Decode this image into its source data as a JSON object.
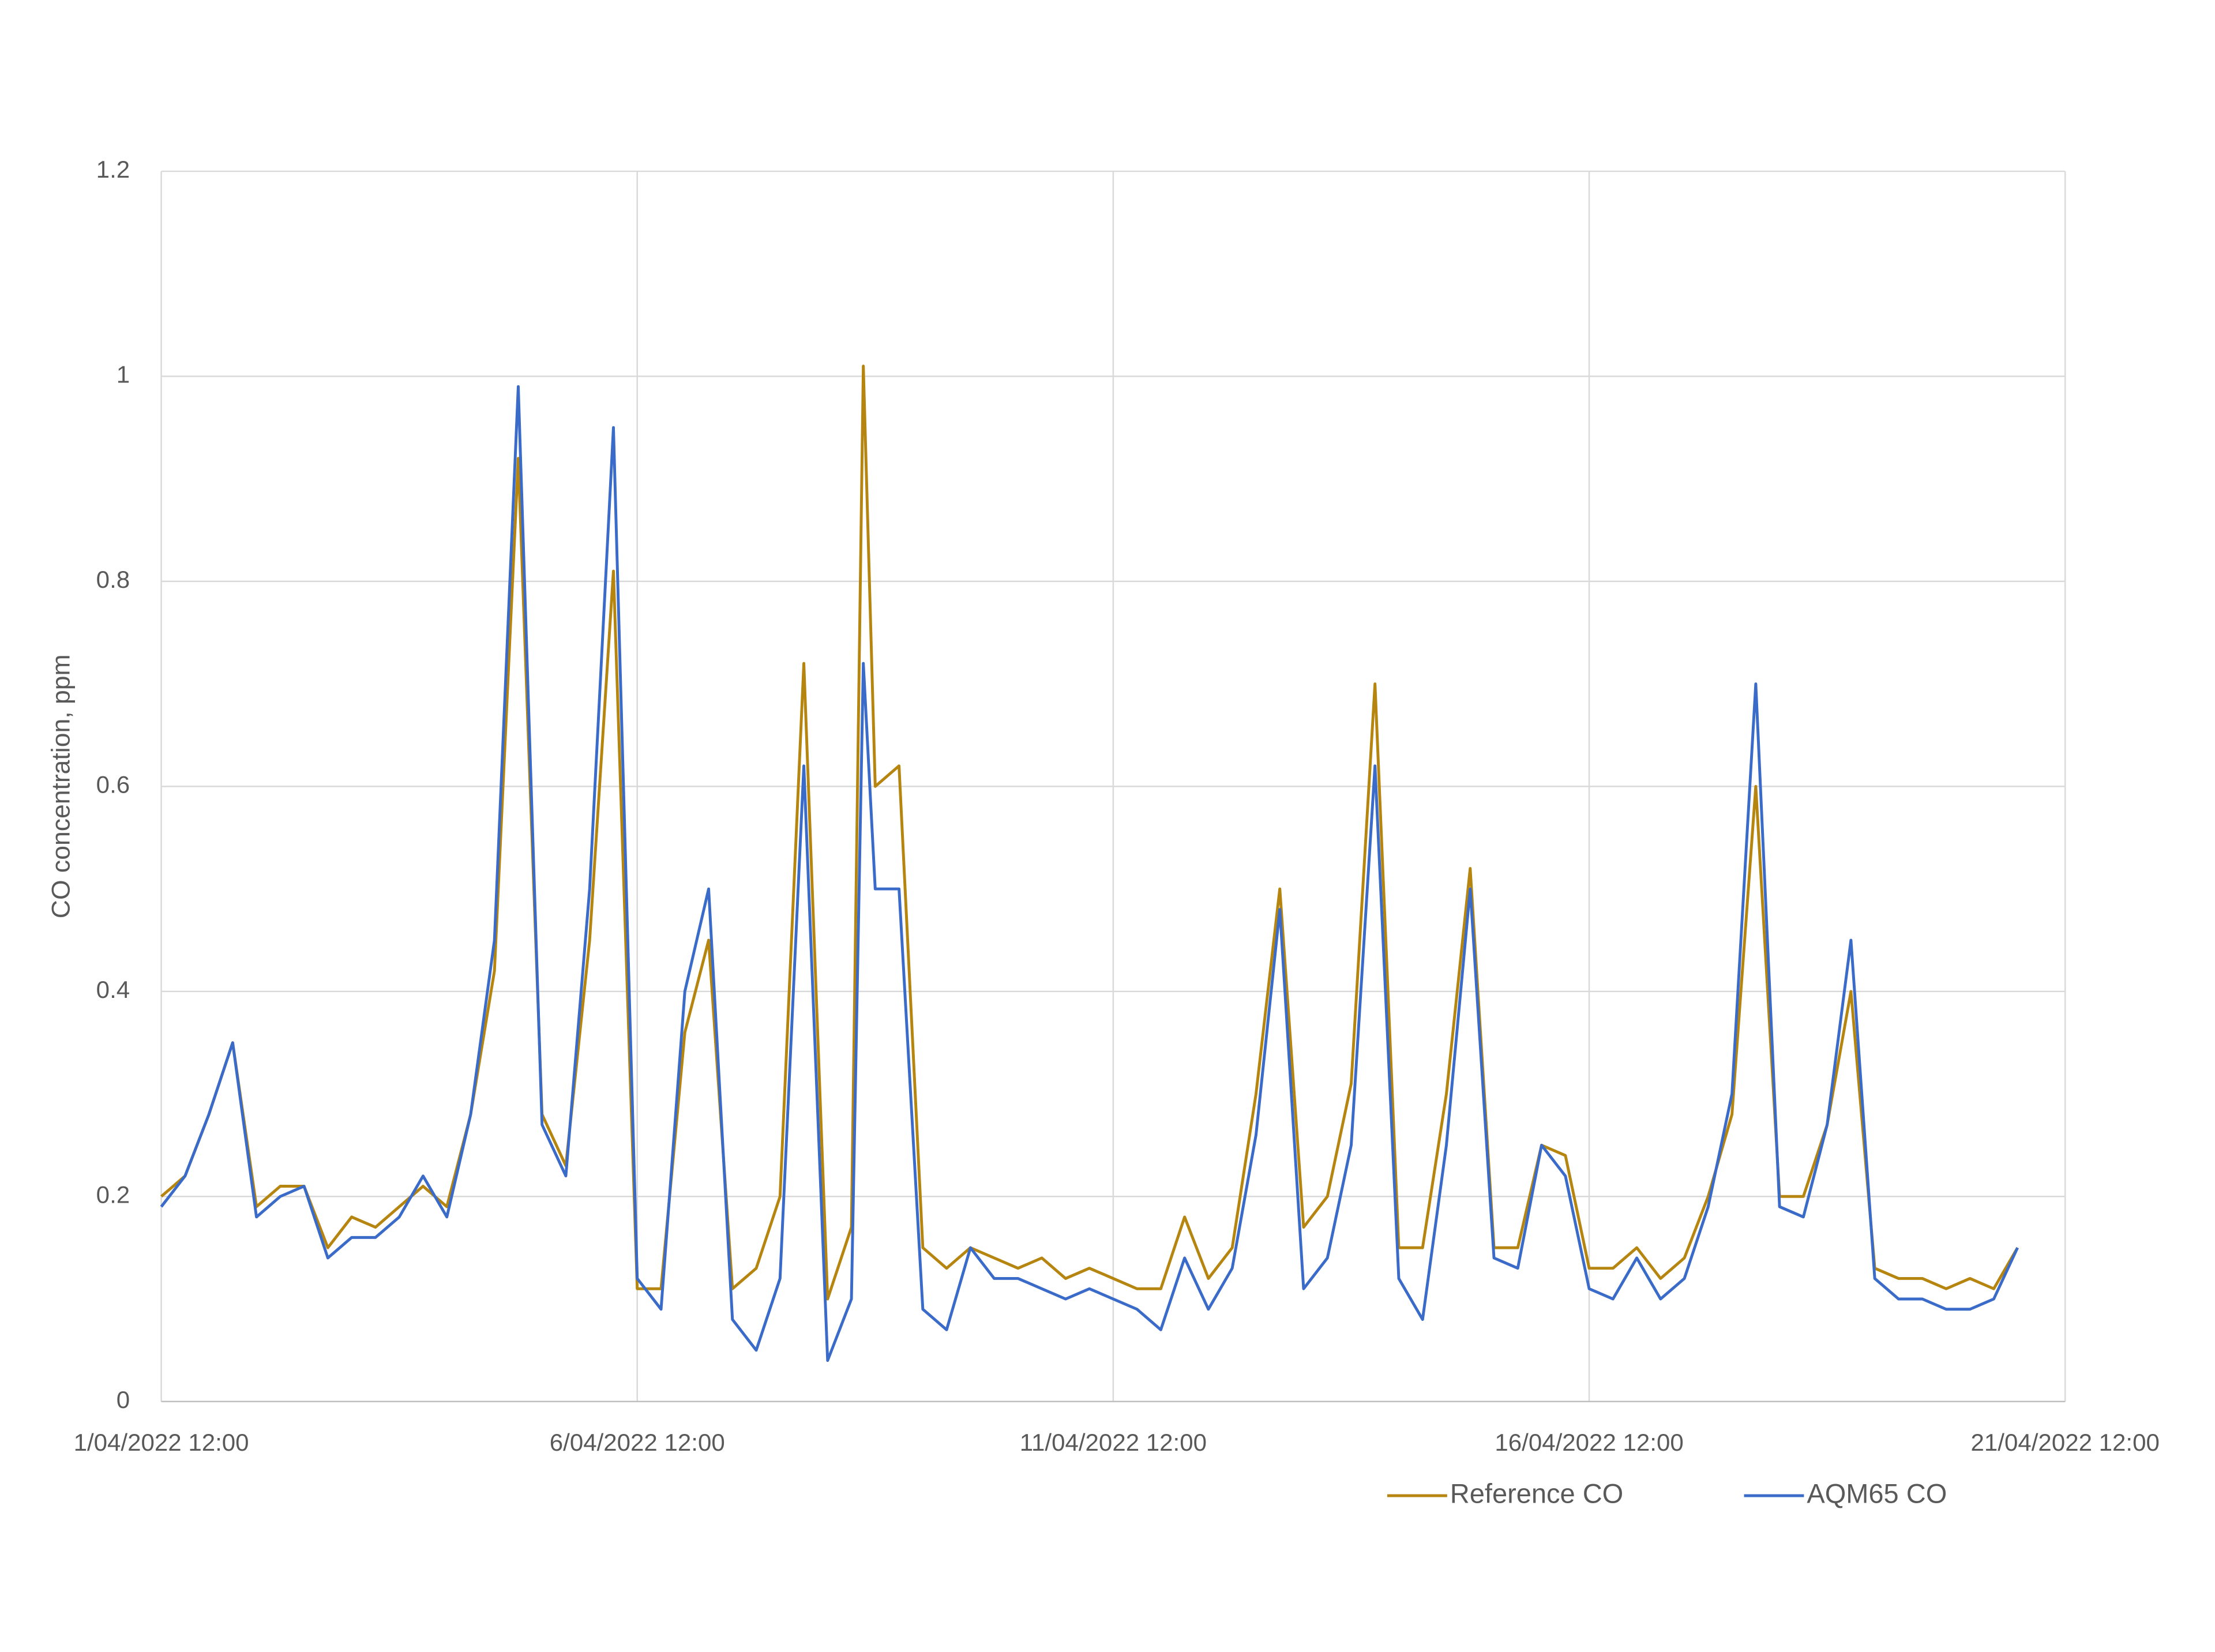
{
  "chart_data": {
    "type": "line",
    "y_label": "CO concentration, ppm",
    "x": [
      "2022-04-01T12:00",
      "2022-04-01T18:00",
      "2022-04-02T00:00",
      "2022-04-02T06:00",
      "2022-04-02T12:00",
      "2022-04-02T18:00",
      "2022-04-03T00:00",
      "2022-04-03T06:00",
      "2022-04-03T12:00",
      "2022-04-03T18:00",
      "2022-04-04T00:00",
      "2022-04-04T06:00",
      "2022-04-04T12:00",
      "2022-04-04T18:00",
      "2022-04-05T00:00",
      "2022-04-05T06:00",
      "2022-04-05T12:00",
      "2022-04-05T18:00",
      "2022-04-06T00:00",
      "2022-04-06T06:00",
      "2022-04-06T12:00",
      "2022-04-06T18:00",
      "2022-04-07T00:00",
      "2022-04-07T06:00",
      "2022-04-07T12:00",
      "2022-04-07T18:00",
      "2022-04-08T00:00",
      "2022-04-08T06:00",
      "2022-04-08T12:00",
      "2022-04-08T18:00",
      "2022-04-08T21:00",
      "2022-04-09T00:00",
      "2022-04-09T06:00",
      "2022-04-09T12:00",
      "2022-04-09T18:00",
      "2022-04-10T00:00",
      "2022-04-10T06:00",
      "2022-04-10T12:00",
      "2022-04-10T18:00",
      "2022-04-11T00:00",
      "2022-04-11T06:00",
      "2022-04-11T12:00",
      "2022-04-11T18:00",
      "2022-04-12T00:00",
      "2022-04-12T06:00",
      "2022-04-12T12:00",
      "2022-04-12T18:00",
      "2022-04-13T00:00",
      "2022-04-13T06:00",
      "2022-04-13T12:00",
      "2022-04-13T18:00",
      "2022-04-14T00:00",
      "2022-04-14T06:00",
      "2022-04-14T12:00",
      "2022-04-14T18:00",
      "2022-04-15T00:00",
      "2022-04-15T06:00",
      "2022-04-15T12:00",
      "2022-04-15T18:00",
      "2022-04-16T00:00",
      "2022-04-16T06:00",
      "2022-04-16T12:00",
      "2022-04-16T18:00",
      "2022-04-17T00:00",
      "2022-04-17T06:00",
      "2022-04-17T12:00",
      "2022-04-17T18:00",
      "2022-04-18T00:00",
      "2022-04-18T06:00",
      "2022-04-18T12:00",
      "2022-04-18T18:00",
      "2022-04-19T00:00",
      "2022-04-19T06:00",
      "2022-04-19T12:00",
      "2022-04-19T18:00",
      "2022-04-20T00:00",
      "2022-04-20T06:00",
      "2022-04-20T12:00",
      "2022-04-20T18:00",
      "2022-04-21T00:00"
    ],
    "series": [
      {
        "name": "Reference CO",
        "color": "#b5850f",
        "values": [
          0.2,
          0.22,
          0.28,
          0.35,
          0.19,
          0.21,
          0.21,
          0.15,
          0.18,
          0.17,
          0.19,
          0.21,
          0.19,
          0.28,
          0.42,
          0.92,
          0.28,
          0.23,
          0.45,
          0.81,
          0.11,
          0.11,
          0.36,
          0.45,
          0.11,
          0.13,
          0.2,
          0.72,
          0.1,
          0.17,
          1.01,
          0.6,
          0.62,
          0.15,
          0.13,
          0.15,
          0.14,
          0.13,
          0.14,
          0.12,
          0.13,
          0.12,
          0.11,
          0.11,
          0.18,
          0.12,
          0.15,
          0.3,
          0.5,
          0.17,
          0.2,
          0.31,
          0.7,
          0.15,
          0.15,
          0.3,
          0.52,
          0.15,
          0.15,
          0.25,
          0.24,
          0.13,
          0.13,
          0.15,
          0.12,
          0.14,
          0.2,
          0.28,
          0.6,
          0.2,
          0.2,
          0.27,
          0.4,
          0.13,
          0.12,
          0.12,
          0.11,
          0.12,
          0.11,
          0.15
        ]
      },
      {
        "name": "AQM65 CO",
        "color": "#3a6bc8",
        "values": [
          0.19,
          0.22,
          0.28,
          0.35,
          0.18,
          0.2,
          0.21,
          0.14,
          0.16,
          0.16,
          0.18,
          0.22,
          0.18,
          0.28,
          0.45,
          0.99,
          0.27,
          0.22,
          0.5,
          0.95,
          0.12,
          0.09,
          0.4,
          0.5,
          0.08,
          0.05,
          0.12,
          0.62,
          0.04,
          0.1,
          0.72,
          0.5,
          0.5,
          0.09,
          0.07,
          0.15,
          0.12,
          0.12,
          0.11,
          0.1,
          0.11,
          0.1,
          0.09,
          0.07,
          0.14,
          0.09,
          0.13,
          0.26,
          0.48,
          0.11,
          0.14,
          0.25,
          0.62,
          0.12,
          0.08,
          0.25,
          0.5,
          0.14,
          0.13,
          0.25,
          0.22,
          0.11,
          0.1,
          0.14,
          0.1,
          0.12,
          0.19,
          0.3,
          0.7,
          0.19,
          0.18,
          0.27,
          0.45,
          0.12,
          0.1,
          0.1,
          0.09,
          0.09,
          0.1,
          0.15
        ]
      }
    ],
    "xlim": [
      "2022-04-01T12:00",
      "2022-04-21T12:00"
    ],
    "xticks": [
      {
        "value": "2022-04-01T12:00",
        "label": "1/04/2022 12:00"
      },
      {
        "value": "2022-04-06T12:00",
        "label": "6/04/2022 12:00"
      },
      {
        "value": "2022-04-11T12:00",
        "label": "11/04/2022 12:00"
      },
      {
        "value": "2022-04-16T12:00",
        "label": "16/04/2022 12:00"
      },
      {
        "value": "2022-04-21T12:00",
        "label": "21/04/2022 12:00"
      }
    ],
    "ylim": [
      0,
      1.2
    ],
    "yticks": [
      0,
      0.2,
      0.4,
      0.6,
      0.8,
      1,
      1.2
    ],
    "grid": true,
    "legend": "bottom"
  }
}
